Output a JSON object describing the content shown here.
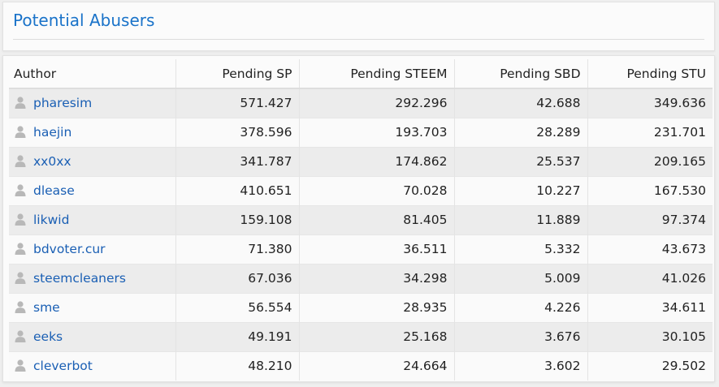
{
  "panel": {
    "title": "Potential Abusers"
  },
  "table": {
    "headers": [
      "Author",
      "Pending SP",
      "Pending STEEM",
      "Pending SBD",
      "Pending STU"
    ],
    "rows": [
      {
        "author": "pharesim",
        "sp": "571.427",
        "steem": "292.296",
        "sbd": "42.688",
        "stu": "349.636"
      },
      {
        "author": "haejin",
        "sp": "378.596",
        "steem": "193.703",
        "sbd": "28.289",
        "stu": "231.701"
      },
      {
        "author": "xx0xx",
        "sp": "341.787",
        "steem": "174.862",
        "sbd": "25.537",
        "stu": "209.165"
      },
      {
        "author": "dlease",
        "sp": "410.651",
        "steem": "70.028",
        "sbd": "10.227",
        "stu": "167.530"
      },
      {
        "author": "likwid",
        "sp": "159.108",
        "steem": "81.405",
        "sbd": "11.889",
        "stu": "97.374"
      },
      {
        "author": "bdvoter.cur",
        "sp": "71.380",
        "steem": "36.511",
        "sbd": "5.332",
        "stu": "43.673"
      },
      {
        "author": "steemcleaners",
        "sp": "67.036",
        "steem": "34.298",
        "sbd": "5.009",
        "stu": "41.026"
      },
      {
        "author": "sme",
        "sp": "56.554",
        "steem": "28.935",
        "sbd": "4.226",
        "stu": "34.611"
      },
      {
        "author": "eeks",
        "sp": "49.191",
        "steem": "25.168",
        "sbd": "3.676",
        "stu": "30.105"
      },
      {
        "author": "cleverbot",
        "sp": "48.210",
        "steem": "24.664",
        "sbd": "3.602",
        "stu": "29.502"
      }
    ]
  },
  "icons": {
    "author_icon": "user-icon"
  },
  "colors": {
    "title": "#1a73c9",
    "link": "#1a5fb4",
    "row_alt": "#ececec",
    "row": "#fafafa",
    "user_icon": "#b8b8b8"
  }
}
